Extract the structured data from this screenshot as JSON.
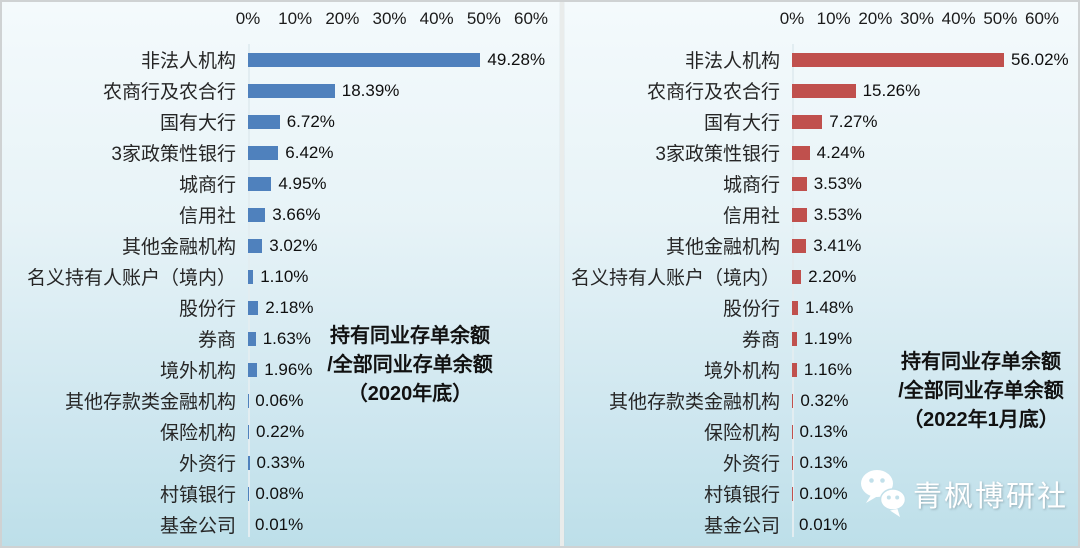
{
  "chart_data": [
    {
      "type": "bar",
      "orientation": "horizontal",
      "title": "持有同业存单余额/全部同业存单余额（2020年底）",
      "title_lines": [
        "持有同业存单余额",
        "/全部同业存单余额",
        "（2020年底）"
      ],
      "categories": [
        "非法人机构",
        "农商行及农合行",
        "国有大行",
        "3家政策性银行",
        "城商行",
        "信用社",
        "其他金融机构",
        "名义持有人账户（境内）",
        "股份行",
        "券商",
        "境外机构",
        "其他存款类金融机构",
        "保险机构",
        "外资行",
        "村镇银行",
        "基金公司"
      ],
      "values": [
        49.28,
        18.39,
        6.72,
        6.42,
        4.95,
        3.66,
        3.02,
        1.1,
        2.18,
        1.63,
        1.96,
        0.06,
        0.22,
        0.33,
        0.08,
        0.01
      ],
      "value_labels": [
        "49.28%",
        "18.39%",
        "6.72%",
        "6.42%",
        "4.95%",
        "3.66%",
        "3.02%",
        "1.10%",
        "2.18%",
        "1.63%",
        "1.96%",
        "0.06%",
        "0.22%",
        "0.33%",
        "0.08%",
        "0.01%"
      ],
      "axis_ticks": [
        "0%",
        "10%",
        "20%",
        "30%",
        "40%",
        "50%",
        "60%"
      ],
      "xlim": [
        0,
        60
      ],
      "axis_max": 60,
      "bar_color": "#4F81BD",
      "grid": "off",
      "legend": "none"
    },
    {
      "type": "bar",
      "orientation": "horizontal",
      "title": "持有同业存单余额/全部同业存单余额（2022年1月底）",
      "title_lines": [
        "持有同业存单余额",
        "/全部同业存单余额",
        "（2022年1月底）"
      ],
      "categories": [
        "非法人机构",
        "农商行及农合行",
        "国有大行",
        "3家政策性银行",
        "城商行",
        "信用社",
        "其他金融机构",
        "名义持有人账户（境内）",
        "股份行",
        "券商",
        "境外机构",
        "其他存款类金融机构",
        "保险机构",
        "外资行",
        "村镇银行",
        "基金公司"
      ],
      "values": [
        56.02,
        15.26,
        7.27,
        4.24,
        3.53,
        3.53,
        3.41,
        2.2,
        1.48,
        1.19,
        1.16,
        0.32,
        0.13,
        0.13,
        0.1,
        0.01
      ],
      "value_labels": [
        "56.02%",
        "15.26%",
        "7.27%",
        "4.24%",
        "3.53%",
        "3.53%",
        "3.41%",
        "2.20%",
        "1.48%",
        "1.19%",
        "1.16%",
        "0.32%",
        "0.13%",
        "0.13%",
        "0.10%",
        "0.01%"
      ],
      "axis_ticks": [
        "0%",
        "10%",
        "20%",
        "30%",
        "40%",
        "50%",
        "60%"
      ],
      "xlim": [
        0,
        60
      ],
      "axis_max": 60,
      "bar_color": "#C0504D",
      "grid": "off",
      "legend": "none"
    }
  ],
  "watermark": {
    "text": "青枫博研社",
    "icon": "wechat-icon"
  },
  "colors": {
    "bar_blue": "#4F81BD",
    "bar_red": "#C0504D",
    "bg_top": "#F4FAFC",
    "bg_bottom": "#BDDFE9",
    "watermark_white": "#FFFFFF"
  }
}
